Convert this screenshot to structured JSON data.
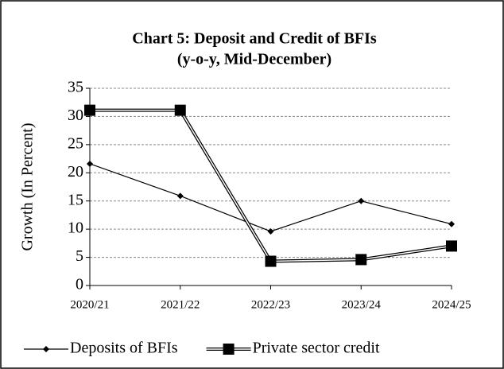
{
  "chart_data": {
    "type": "line",
    "title": "Chart 5:  Deposit and Credit of BFIs",
    "subtitle": "(y-o-y, Mid-December)",
    "y_label": "Growth (In Percent)",
    "categories": [
      "2020/21",
      "2021/22",
      "2022/23",
      "2023/24",
      "2024/25"
    ],
    "series": [
      {
        "name": "Deposits of BFIs",
        "color": "#000000",
        "marker": "diamond",
        "values": [
          21.6,
          15.9,
          9.6,
          15.0,
          10.9
        ]
      },
      {
        "name": "Private sector credit",
        "color": "#000000",
        "marker": "square",
        "values": [
          31.1,
          31.1,
          4.3,
          4.6,
          7.0
        ]
      }
    ],
    "ylim": [
      0,
      35
    ],
    "yticks": [
      0,
      5,
      10,
      15,
      20,
      25,
      30,
      35
    ],
    "grid": true,
    "legend": "bottom"
  }
}
